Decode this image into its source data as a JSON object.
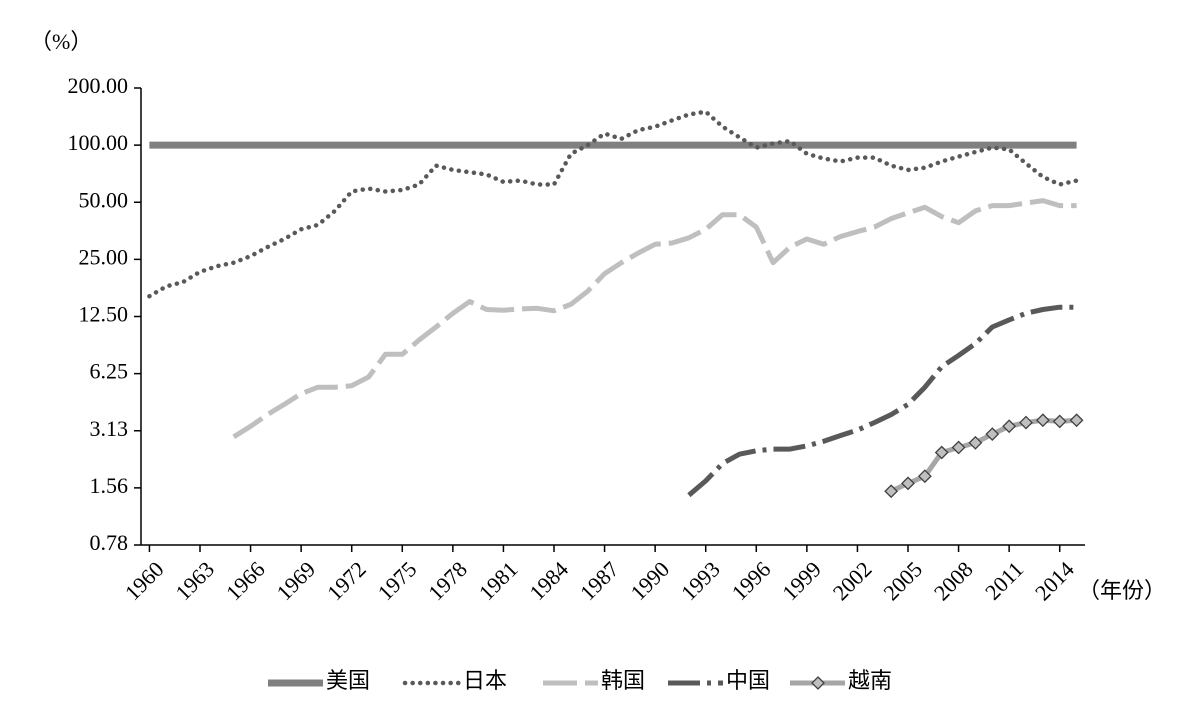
{
  "chart_data": {
    "type": "line",
    "y_unit": "（%）",
    "x_unit": "（年份）",
    "x": [
      1960,
      1961,
      1962,
      1963,
      1964,
      1965,
      1966,
      1967,
      1968,
      1969,
      1970,
      1971,
      1972,
      1973,
      1974,
      1975,
      1976,
      1977,
      1978,
      1979,
      1980,
      1981,
      1982,
      1983,
      1984,
      1985,
      1986,
      1987,
      1988,
      1989,
      1990,
      1991,
      1992,
      1993,
      1994,
      1995,
      1996,
      1997,
      1998,
      1999,
      2000,
      2001,
      2002,
      2003,
      2004,
      2005,
      2006,
      2007,
      2008,
      2009,
      2010,
      2011,
      2012,
      2013,
      2014,
      2015
    ],
    "xlim": [
      1959.5,
      2015.5
    ],
    "xticks": [
      1960,
      1963,
      1966,
      1969,
      1972,
      1975,
      1978,
      1981,
      1984,
      1987,
      1990,
      1993,
      1996,
      1999,
      2002,
      2005,
      2008,
      2011,
      2014
    ],
    "log_scale": true,
    "ylim": [
      0.78125,
      200
    ],
    "yticks": [
      {
        "value": 0.78125,
        "label": "0.78"
      },
      {
        "value": 1.5625,
        "label": "1.56"
      },
      {
        "value": 3.125,
        "label": "3.13"
      },
      6.25,
      {
        "value": 12.5,
        "label": "12.50"
      },
      {
        "value": 25,
        "label": "25.00"
      },
      {
        "value": 50,
        "label": "50.00"
      },
      {
        "value": 100,
        "label": "100.00"
      },
      {
        "value": 200,
        "label": "200.00"
      }
    ],
    "series": [
      {
        "name": "美国",
        "color": "#808080",
        "style": "solid",
        "values": [
          100,
          100,
          100,
          100,
          100,
          100,
          100,
          100,
          100,
          100,
          100,
          100,
          100,
          100,
          100,
          100,
          100,
          100,
          100,
          100,
          100,
          100,
          100,
          100,
          100,
          100,
          100,
          100,
          100,
          100,
          100,
          100,
          100,
          100,
          100,
          100,
          100,
          100,
          100,
          100,
          100,
          100,
          100,
          100,
          100,
          100,
          100,
          100,
          100,
          100,
          100,
          100,
          100,
          100,
          100,
          100
        ]
      },
      {
        "name": "日本",
        "color": "#595959",
        "style": "dotted",
        "values": [
          16,
          18,
          19,
          21.5,
          23,
          24,
          26,
          29,
          32,
          36,
          38,
          45,
          57,
          59,
          57,
          58,
          62,
          78,
          74,
          72,
          70,
          64,
          65,
          62,
          62,
          90,
          100,
          115,
          108,
          120,
          125,
          135,
          145,
          150,
          125,
          110,
          97,
          102,
          105,
          90,
          85,
          82,
          86,
          86,
          78,
          74,
          76,
          82,
          87,
          92,
          97,
          95,
          80,
          68,
          62,
          65
        ]
      },
      {
        "name": "韩国",
        "color": "#bfbfbf",
        "style": "dashed",
        "values": [
          null,
          null,
          null,
          null,
          null,
          2.9,
          3.3,
          3.8,
          4.3,
          4.9,
          5.3,
          5.3,
          5.4,
          6.0,
          7.9,
          7.9,
          9.4,
          11,
          13,
          15,
          13.6,
          13.5,
          13.7,
          13.8,
          13.4,
          14.5,
          17,
          21,
          24,
          27,
          30,
          30.5,
          32.5,
          36,
          43,
          43,
          37,
          24,
          29,
          32,
          30,
          33,
          35,
          37,
          41,
          44,
          47,
          42,
          39,
          45,
          48,
          48,
          49.5,
          51,
          48,
          48
        ]
      },
      {
        "name": "中国",
        "color": "#595959",
        "style": "dashdot",
        "values": [
          null,
          null,
          null,
          null,
          null,
          null,
          null,
          null,
          null,
          null,
          null,
          null,
          null,
          null,
          null,
          null,
          null,
          null,
          null,
          null,
          null,
          null,
          null,
          null,
          null,
          null,
          null,
          null,
          null,
          null,
          null,
          null,
          1.43,
          1.7,
          2.1,
          2.35,
          2.45,
          2.5,
          2.5,
          2.6,
          2.75,
          2.95,
          3.15,
          3.45,
          3.8,
          4.3,
          5.3,
          6.8,
          7.8,
          9.0,
          11,
          12,
          13,
          13.6,
          14,
          14
        ]
      },
      {
        "name": "越南",
        "color": "#a6a6a6",
        "style": "marker",
        "values": [
          null,
          null,
          null,
          null,
          null,
          null,
          null,
          null,
          null,
          null,
          null,
          null,
          null,
          null,
          null,
          null,
          null,
          null,
          null,
          null,
          null,
          null,
          null,
          null,
          null,
          null,
          null,
          null,
          null,
          null,
          null,
          null,
          null,
          null,
          null,
          null,
          null,
          null,
          null,
          null,
          null,
          null,
          null,
          null,
          1.5,
          1.65,
          1.8,
          2.4,
          2.55,
          2.7,
          3.0,
          3.3,
          3.45,
          3.55,
          3.5,
          3.55
        ]
      }
    ]
  }
}
